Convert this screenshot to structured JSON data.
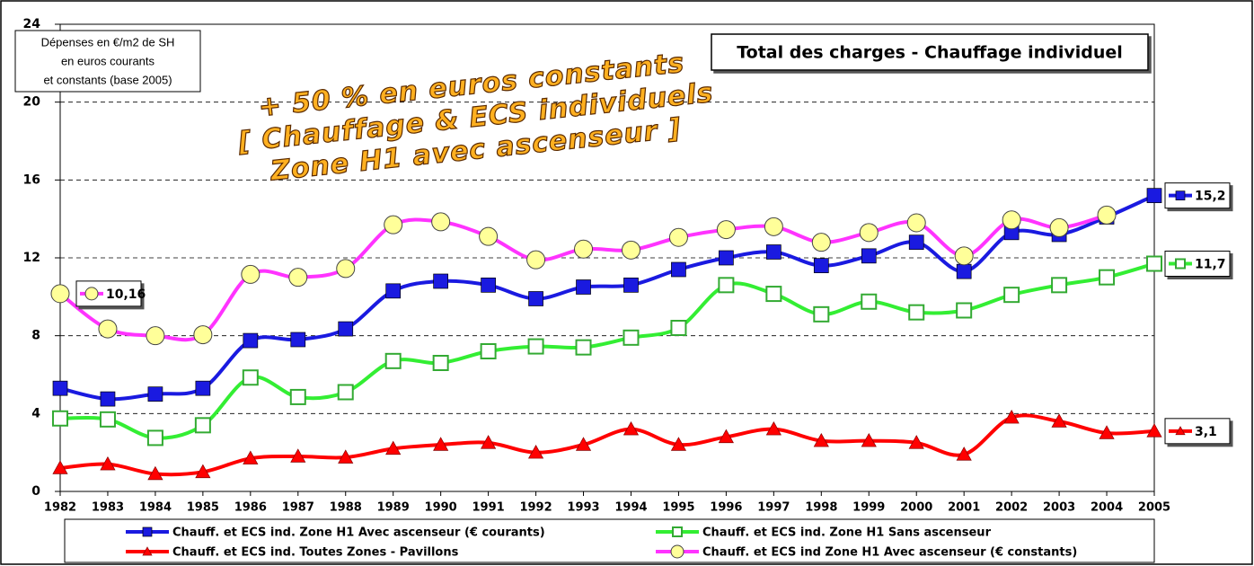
{
  "chart_data": {
    "type": "line",
    "title": "Total des charges - Chauffage individuel",
    "y_label": [
      "Dépenses en €/m2 de SH",
      "en euros courants",
      "et constants (base 2005)"
    ],
    "annotation": [
      "+ 50 % en euros constants",
      "[ Chauffage & ECS individuels",
      "Zone H1 avec ascenseur ]"
    ],
    "categories": [
      "1982",
      "1983",
      "1984",
      "1985",
      "1986",
      "1987",
      "1988",
      "1989",
      "1990",
      "1991",
      "1992",
      "1993",
      "1994",
      "1995",
      "1996",
      "1997",
      "1998",
      "1999",
      "2000",
      "2001",
      "2002",
      "2003",
      "2004",
      "2005"
    ],
    "ylim": [
      0,
      24
    ],
    "yticks": [
      0,
      4,
      8,
      12,
      16,
      20,
      24
    ],
    "grid": true,
    "legend": "bottom",
    "series": [
      {
        "name": "Chauff. et ECS ind. Zone H1 Avec ascenseur  (€ courants)",
        "color": "#1a1ae0",
        "marker": "square",
        "values": [
          5.3,
          4.75,
          5.0,
          5.3,
          7.75,
          7.8,
          8.35,
          10.3,
          10.8,
          10.6,
          9.9,
          10.5,
          10.6,
          11.4,
          12.0,
          12.3,
          11.6,
          12.1,
          12.8,
          11.3,
          13.3,
          13.2,
          14.1,
          15.2
        ],
        "value_labels": [
          null,
          null,
          null,
          null,
          null,
          null,
          null,
          null,
          null,
          null,
          null,
          null,
          null,
          null,
          null,
          null,
          null,
          null,
          null,
          null,
          null,
          null,
          null,
          "15,2"
        ]
      },
      {
        "name": "Chauff. et ECS ind. Zone H1 Sans ascenseur",
        "color": "#33ee33",
        "marker": "hollow-square",
        "values": [
          3.75,
          3.7,
          2.75,
          3.4,
          5.85,
          4.85,
          5.1,
          6.7,
          6.6,
          7.2,
          7.45,
          7.4,
          7.9,
          8.4,
          10.6,
          10.15,
          9.1,
          9.75,
          9.2,
          9.3,
          10.1,
          10.6,
          11.0,
          11.7
        ],
        "value_labels": [
          null,
          null,
          null,
          null,
          null,
          null,
          null,
          null,
          null,
          null,
          null,
          null,
          null,
          null,
          null,
          null,
          null,
          null,
          null,
          null,
          null,
          null,
          null,
          "11,7"
        ]
      },
      {
        "name": "Chauff. et ECS ind. Toutes Zones - Pavillons",
        "color": "#ff0000",
        "marker": "triangle",
        "values": [
          1.2,
          1.4,
          0.9,
          1.0,
          1.7,
          1.8,
          1.75,
          2.2,
          2.4,
          2.5,
          2.0,
          2.4,
          3.2,
          2.4,
          2.8,
          3.2,
          2.6,
          2.6,
          2.5,
          1.9,
          3.8,
          3.6,
          3.0,
          3.1
        ],
        "value_labels": [
          null,
          null,
          null,
          null,
          null,
          null,
          null,
          null,
          null,
          null,
          null,
          null,
          null,
          null,
          null,
          null,
          null,
          null,
          null,
          null,
          null,
          null,
          null,
          "3,1"
        ]
      },
      {
        "name": "Chauff. et ECS ind Zone H1 Avec ascenseur (€ constants)",
        "color": "#ff33ff",
        "marker": "circle",
        "values": [
          10.16,
          8.35,
          8.0,
          8.05,
          11.15,
          11.0,
          11.45,
          13.7,
          13.85,
          13.1,
          11.9,
          12.45,
          12.4,
          13.05,
          13.45,
          13.6,
          12.8,
          13.3,
          13.8,
          12.1,
          13.95,
          13.55,
          14.2,
          null
        ],
        "value_labels": [
          "10,16",
          null,
          null,
          null,
          null,
          null,
          null,
          null,
          null,
          null,
          null,
          null,
          null,
          null,
          null,
          null,
          null,
          null,
          null,
          null,
          null,
          null,
          null,
          null
        ]
      }
    ]
  }
}
